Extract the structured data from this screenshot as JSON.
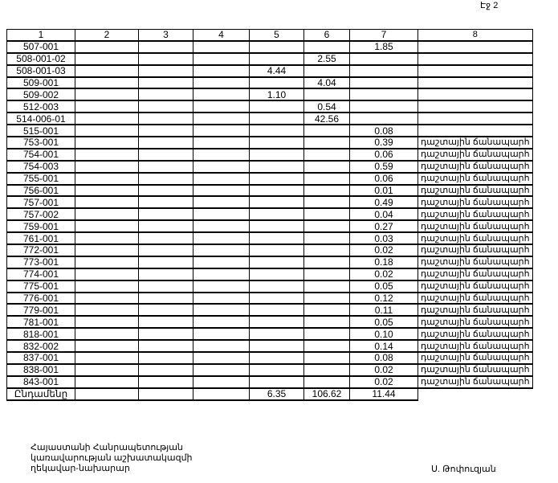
{
  "page_label": "Էջ 2",
  "headers": [
    "1",
    "2",
    "3",
    "4",
    "5",
    "6",
    "7",
    "8"
  ],
  "rows": [
    {
      "id": "507-001",
      "c5": "",
      "c6": "",
      "c7": "1.85",
      "c8": ""
    },
    {
      "id": "508-001-02",
      "c5": "",
      "c6": "2.55",
      "c7": "",
      "c8": ""
    },
    {
      "id": "508-001-03",
      "c5": "4.44",
      "c6": "",
      "c7": "",
      "c8": ""
    },
    {
      "id": "509-001",
      "c5": "",
      "c6": "4.04",
      "c7": "",
      "c8": ""
    },
    {
      "id": "509-002",
      "c5": "1.10",
      "c6": "",
      "c7": "",
      "c8": ""
    },
    {
      "id": "512-003",
      "c5": "",
      "c6": "0.54",
      "c7": "",
      "c8": ""
    },
    {
      "id": "514-006-01",
      "c5": "",
      "c6": "42.56",
      "c7": "",
      "c8": ""
    },
    {
      "id": "515-001",
      "c5": "",
      "c6": "",
      "c7": "0.08",
      "c8": ""
    },
    {
      "id": "753-001",
      "c5": "",
      "c6": "",
      "c7": "0.39",
      "c8": "դաշտային ճանապարհ"
    },
    {
      "id": "754-001",
      "c5": "",
      "c6": "",
      "c7": "0.06",
      "c8": "դաշտային ճանապարհ"
    },
    {
      "id": "754-003",
      "c5": "",
      "c6": "",
      "c7": "0.59",
      "c8": "դաշտային ճանապարհ"
    },
    {
      "id": "755-001",
      "c5": "",
      "c6": "",
      "c7": "0.06",
      "c8": "դաշտային ճանապարհ"
    },
    {
      "id": "756-001",
      "c5": "",
      "c6": "",
      "c7": "0.01",
      "c8": "դաշտային ճանապարհ"
    },
    {
      "id": "757-001",
      "c5": "",
      "c6": "",
      "c7": "0.49",
      "c8": "դաշտային ճանապարհ"
    },
    {
      "id": "757-002",
      "c5": "",
      "c6": "",
      "c7": "0.04",
      "c8": "դաշտային ճանապարհ"
    },
    {
      "id": "759-001",
      "c5": "",
      "c6": "",
      "c7": "0.27",
      "c8": "դաշտային ճանապարհ"
    },
    {
      "id": "761-001",
      "c5": "",
      "c6": "",
      "c7": "0.03",
      "c8": "դաշտային ճանապարհ"
    },
    {
      "id": "772-001",
      "c5": "",
      "c6": "",
      "c7": "0.02",
      "c8": "դաշտային ճանապարհ"
    },
    {
      "id": "773-001",
      "c5": "",
      "c6": "",
      "c7": "0.18",
      "c8": "դաշտային ճանապարհ"
    },
    {
      "id": "774-001",
      "c5": "",
      "c6": "",
      "c7": "0.02",
      "c8": "դաշտային ճանապարհ"
    },
    {
      "id": "775-001",
      "c5": "",
      "c6": "",
      "c7": "0.05",
      "c8": "դաշտային ճանապարհ"
    },
    {
      "id": "776-001",
      "c5": "",
      "c6": "",
      "c7": "0.12",
      "c8": "դաշտային ճանապարհ"
    },
    {
      "id": "779-001",
      "c5": "",
      "c6": "",
      "c7": "0.11",
      "c8": "դաշտային ճանապարհ"
    },
    {
      "id": "781-001",
      "c5": "",
      "c6": "",
      "c7": "0.05",
      "c8": "դաշտային ճանապարհ"
    },
    {
      "id": "818-001",
      "c5": "",
      "c6": "",
      "c7": "0.10",
      "c8": "դաշտային ճանապարհ"
    },
    {
      "id": "832-002",
      "c5": "",
      "c6": "",
      "c7": "0.14",
      "c8": "դաշտային ճանապարհ"
    },
    {
      "id": "837-001",
      "c5": "",
      "c6": "",
      "c7": "0.08",
      "c8": "դաշտային ճանապարհ"
    },
    {
      "id": "838-001",
      "c5": "",
      "c6": "",
      "c7": "0.02",
      "c8": "դաշտային ճանապարհ"
    },
    {
      "id": "843-001",
      "c5": "",
      "c6": "",
      "c7": "0.02",
      "c8": "դաշտային ճանապարհ"
    }
  ],
  "total": {
    "label": "Ընդամենը",
    "c5": "6.35",
    "c6": "106.62",
    "c7": "11.44"
  },
  "footer": {
    "line1": "Հայաստանի Հանրապետության",
    "line2": "կառավարության աշխատակազմի",
    "line3": "ղեկավար-նախարար",
    "signatory": "Ս. Թոփուզյան"
  }
}
